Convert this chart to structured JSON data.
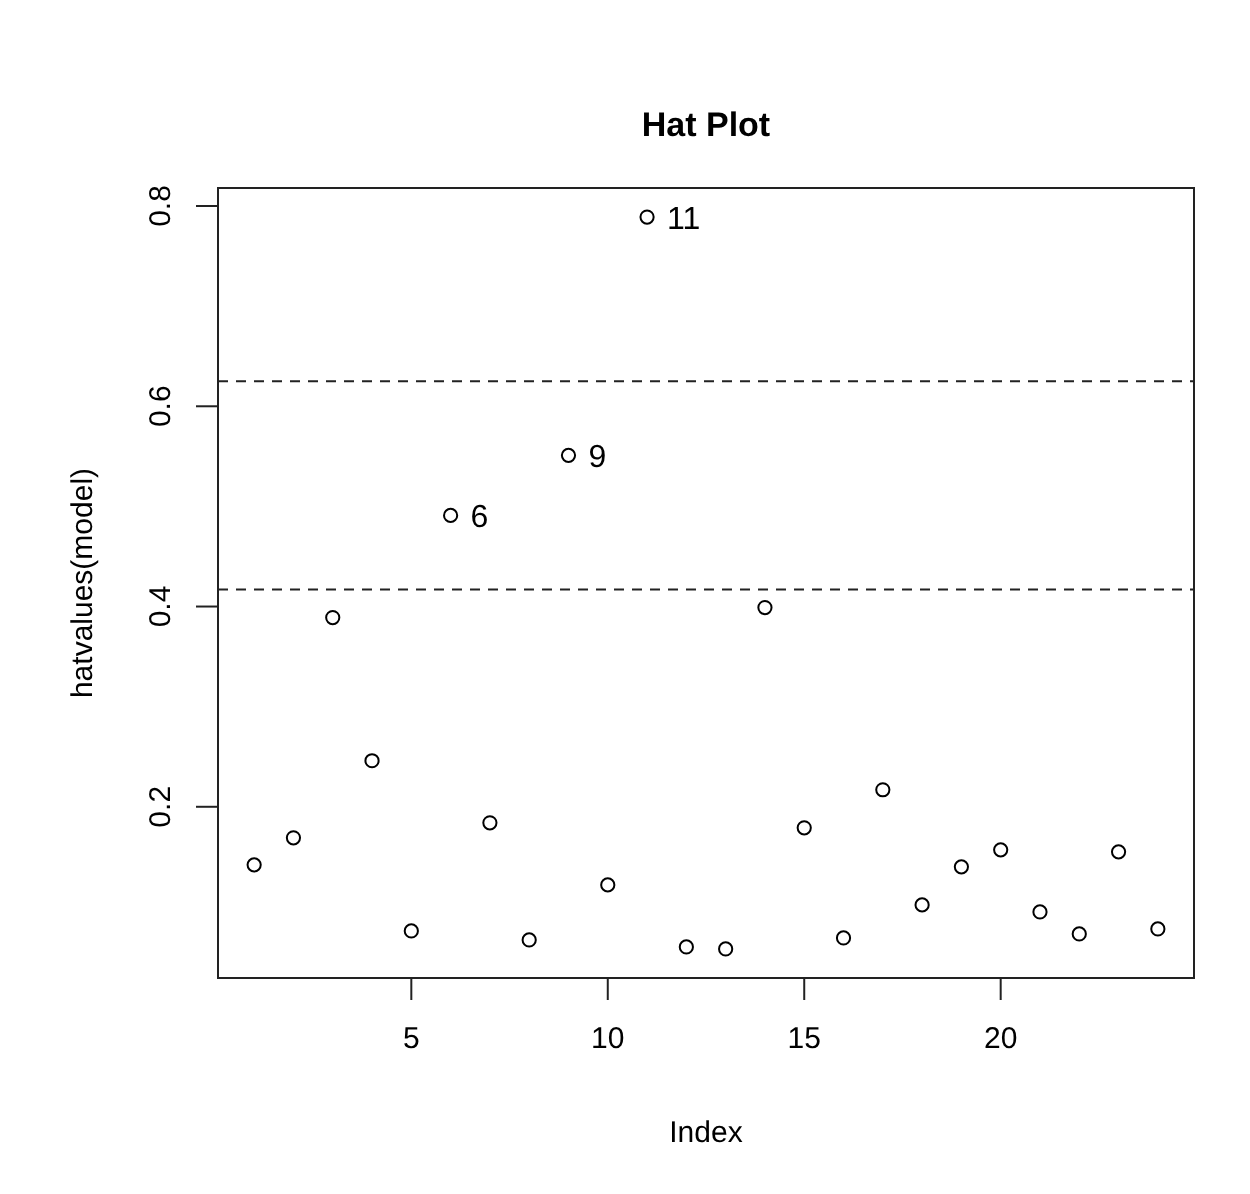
{
  "chart_data": {
    "type": "scatter",
    "title": "Hat Plot",
    "xlabel": "Index",
    "ylabel": "hatvalues(model)",
    "x": [
      1,
      2,
      3,
      4,
      5,
      6,
      7,
      8,
      9,
      10,
      11,
      12,
      13,
      14,
      15,
      16,
      17,
      18,
      19,
      20,
      21,
      22,
      23,
      24
    ],
    "values": [
      0.142,
      0.169,
      0.389,
      0.246,
      0.076,
      0.491,
      0.184,
      0.067,
      0.551,
      0.122,
      0.789,
      0.06,
      0.058,
      0.399,
      0.179,
      0.069,
      0.217,
      0.102,
      0.14,
      0.157,
      0.095,
      0.073,
      0.155,
      0.078
    ],
    "color": "#000000",
    "marker": "circle",
    "grid": false,
    "xlim": [
      0.08,
      24.92
    ],
    "xticks": [
      5,
      10,
      15,
      20
    ],
    "ylim": [
      0.029,
      0.818
    ],
    "yticks": [
      0.2,
      0.4,
      0.6,
      0.8
    ],
    "ref_lines": [
      {
        "axis": "y",
        "value": 0.625,
        "line_style": "dashed"
      },
      {
        "axis": "y",
        "value": 0.417,
        "line_style": "dashed"
      }
    ],
    "annotations": [
      {
        "text": "6",
        "x": 6,
        "y": 0.491
      },
      {
        "text": "9",
        "x": 9,
        "y": 0.551
      },
      {
        "text": "11",
        "x": 11,
        "y": 0.789
      }
    ]
  }
}
